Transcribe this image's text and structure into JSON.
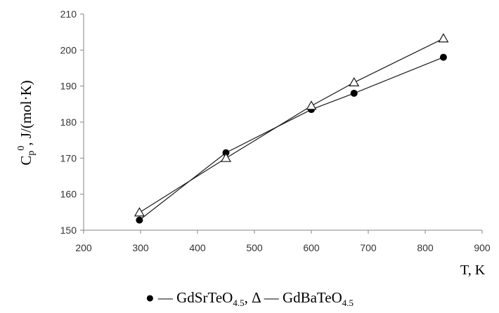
{
  "chart_data": {
    "type": "line",
    "xlabel": "T, K",
    "ylabel": {
      "base": "C",
      "sub": "p",
      "sup": "0",
      "rest": ", J/(mol·K)"
    },
    "xlim": [
      200,
      900
    ],
    "ylim": [
      150,
      210
    ],
    "xticks": [
      200,
      300,
      400,
      500,
      600,
      700,
      800,
      900
    ],
    "yticks": [
      150,
      160,
      170,
      180,
      190,
      200,
      210
    ],
    "grid": false,
    "legend": "caption below chart",
    "series": [
      {
        "name": "GdSrTeO4.5",
        "marker": "filled-circle",
        "x": [
          298,
          450,
          600,
          675,
          832
        ],
        "y": [
          152.8,
          171.5,
          183.5,
          188.0,
          198.0
        ]
      },
      {
        "name": "GdBaTeO4.5",
        "marker": "open-triangle",
        "x": [
          298,
          450,
          600,
          675,
          832
        ],
        "y": [
          154.9,
          170.0,
          184.5,
          191.0,
          203.2
        ]
      }
    ],
    "caption": {
      "marker1": "●",
      "dash1": " — ",
      "name1_base": "GdSrTeO",
      "name1_sub": "4.5",
      "sep": ", ",
      "marker2": "Δ",
      "dash2": " — ",
      "name2_base": "GdBaTeO",
      "name2_sub": "4.5"
    }
  }
}
